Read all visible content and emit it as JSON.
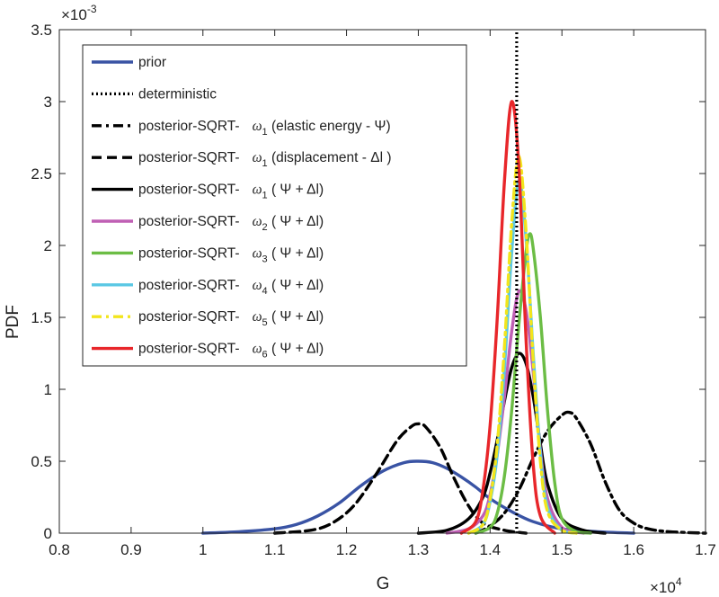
{
  "chart_data": {
    "type": "line",
    "xlabel": "G",
    "ylabel": "PDF",
    "x_exponent": "×10",
    "x_exponent_power": "4",
    "y_exponent": "×10",
    "y_exponent_power": "-3",
    "xlim": [
      0.8,
      1.7
    ],
    "ylim": [
      0,
      3.5
    ],
    "x_ticks": [
      "0.8",
      "0.9",
      "1",
      "1.1",
      "1.2",
      "1.3",
      "1.4",
      "1.5",
      "1.6",
      "1.7"
    ],
    "y_ticks": [
      "0",
      "0.5",
      "1",
      "1.5",
      "2",
      "2.5",
      "3",
      "3.5"
    ],
    "grid": false,
    "legend_position": "top-left",
    "series": [
      {
        "name": "prior",
        "color": "#3953a4",
        "dash": "solid",
        "x": [
          1.0,
          1.05,
          1.1,
          1.13,
          1.16,
          1.19,
          1.22,
          1.25,
          1.28,
          1.3,
          1.32,
          1.34,
          1.36,
          1.38,
          1.4,
          1.43,
          1.46,
          1.5,
          1.55,
          1.6
        ],
        "y": [
          0.0,
          0.01,
          0.03,
          0.06,
          0.12,
          0.21,
          0.33,
          0.43,
          0.49,
          0.5,
          0.49,
          0.45,
          0.39,
          0.32,
          0.24,
          0.15,
          0.08,
          0.03,
          0.01,
          0.0
        ]
      },
      {
        "name": "deterministic",
        "color": "#000000",
        "dash": "dotted",
        "x": [
          1.437,
          1.437
        ],
        "y": [
          0.0,
          3.5
        ]
      },
      {
        "name": "posterior-SQRT- ω₁ (elastic energy - Ψ)",
        "color": "#000000",
        "dash": "dashdot",
        "x": [
          1.38,
          1.4,
          1.42,
          1.44,
          1.46,
          1.48,
          1.5,
          1.51,
          1.52,
          1.54,
          1.56,
          1.58,
          1.6,
          1.62,
          1.65,
          1.7
        ],
        "y": [
          0.0,
          0.05,
          0.14,
          0.3,
          0.52,
          0.71,
          0.82,
          0.84,
          0.8,
          0.62,
          0.36,
          0.16,
          0.07,
          0.03,
          0.01,
          0.0
        ]
      },
      {
        "name": "posterior-SQRT- ω₁ (displacement - Δl)",
        "color": "#000000",
        "dash": "dashed",
        "x": [
          1.1,
          1.15,
          1.18,
          1.21,
          1.24,
          1.27,
          1.29,
          1.3,
          1.31,
          1.33,
          1.35,
          1.37,
          1.39,
          1.42,
          1.45
        ],
        "y": [
          0.0,
          0.02,
          0.07,
          0.19,
          0.4,
          0.64,
          0.74,
          0.76,
          0.74,
          0.6,
          0.38,
          0.19,
          0.07,
          0.02,
          0.0
        ]
      },
      {
        "name": "posterior-SQRT- ω₁ (Ψ + Δl)",
        "color": "#000000",
        "dash": "solid",
        "x": [
          1.3,
          1.34,
          1.37,
          1.39,
          1.4,
          1.41,
          1.42,
          1.43,
          1.44,
          1.45,
          1.46,
          1.47,
          1.48,
          1.5,
          1.53,
          1.56
        ],
        "y": [
          0.0,
          0.02,
          0.1,
          0.25,
          0.42,
          0.65,
          0.92,
          1.15,
          1.25,
          1.18,
          0.95,
          0.62,
          0.34,
          0.1,
          0.02,
          0.0
        ]
      },
      {
        "name": "posterior-SQRT- ω₂ (Ψ + Δl)",
        "color": "#bf5fb4",
        "dash": "solid",
        "x": [
          1.34,
          1.37,
          1.39,
          1.4,
          1.41,
          1.42,
          1.43,
          1.44,
          1.45,
          1.46,
          1.47,
          1.48,
          1.5,
          1.53
        ],
        "y": [
          0.0,
          0.03,
          0.12,
          0.27,
          0.55,
          0.95,
          1.4,
          1.68,
          1.55,
          1.12,
          0.58,
          0.24,
          0.04,
          0.0
        ]
      },
      {
        "name": "posterior-SQRT- ω₃ (Ψ + Δl)",
        "color": "#6cbd45",
        "dash": "solid",
        "x": [
          1.38,
          1.4,
          1.41,
          1.42,
          1.43,
          1.44,
          1.45,
          1.455,
          1.46,
          1.47,
          1.48,
          1.49,
          1.5,
          1.52,
          1.54
        ],
        "y": [
          0.0,
          0.04,
          0.14,
          0.4,
          0.85,
          1.45,
          1.95,
          2.08,
          1.98,
          1.5,
          0.85,
          0.35,
          0.1,
          0.01,
          0.0
        ]
      },
      {
        "name": "posterior-SQRT- ω₄ (Ψ + Δl)",
        "color": "#5bc8e4",
        "dash": "solid",
        "x": [
          1.37,
          1.39,
          1.4,
          1.41,
          1.42,
          1.43,
          1.44,
          1.45,
          1.46,
          1.47,
          1.48,
          1.5,
          1.52
        ],
        "y": [
          0.0,
          0.06,
          0.22,
          0.55,
          1.15,
          1.95,
          2.45,
          2.05,
          1.25,
          0.55,
          0.18,
          0.02,
          0.0
        ]
      },
      {
        "name": "posterior-SQRT- ω₅ (Ψ + Δl)",
        "color": "#f2e51c",
        "dash": "dashdot",
        "x": [
          1.37,
          1.39,
          1.4,
          1.41,
          1.42,
          1.43,
          1.44,
          1.45,
          1.46,
          1.47,
          1.48,
          1.5,
          1.52
        ],
        "y": [
          0.0,
          0.06,
          0.24,
          0.62,
          1.3,
          2.15,
          2.62,
          2.1,
          1.2,
          0.5,
          0.15,
          0.02,
          0.0
        ]
      },
      {
        "name": "posterior-SQRT- ω₆ (Ψ + Δl)",
        "color": "#e8262a",
        "dash": "solid",
        "x": [
          1.36,
          1.38,
          1.39,
          1.4,
          1.41,
          1.42,
          1.43,
          1.44,
          1.45,
          1.46,
          1.47,
          1.49
        ],
        "y": [
          0.0,
          0.08,
          0.3,
          0.75,
          1.5,
          2.45,
          3.0,
          2.55,
          1.35,
          0.48,
          0.12,
          0.0
        ]
      }
    ],
    "legend": [
      {
        "prefix": "prior",
        "omega": "",
        "sub": "",
        "suffix": ""
      },
      {
        "prefix": "deterministic",
        "omega": "",
        "sub": "",
        "suffix": ""
      },
      {
        "prefix": "posterior-SQRT-",
        "omega": "ω",
        "sub": "1",
        "suffix": " (elastic energy -   Ψ)"
      },
      {
        "prefix": "posterior-SQRT-",
        "omega": "ω",
        "sub": "1",
        "suffix": " (displacement -   Δl )"
      },
      {
        "prefix": "posterior-SQRT-",
        "omega": "ω",
        "sub": "1",
        "suffix": " ( Ψ +  Δl)"
      },
      {
        "prefix": "posterior-SQRT-",
        "omega": "ω",
        "sub": "2",
        "suffix": " ( Ψ +  Δl)"
      },
      {
        "prefix": "posterior-SQRT-",
        "omega": "ω",
        "sub": "3",
        "suffix": " ( Ψ +  Δl)"
      },
      {
        "prefix": "posterior-SQRT-",
        "omega": "ω",
        "sub": "4",
        "suffix": " ( Ψ +  Δl)"
      },
      {
        "prefix": "posterior-SQRT-",
        "omega": "ω",
        "sub": "5",
        "suffix": " ( Ψ +  Δl)"
      },
      {
        "prefix": "posterior-SQRT-",
        "omega": "ω",
        "sub": "6",
        "suffix": " ( Ψ +  Δl)"
      }
    ]
  }
}
